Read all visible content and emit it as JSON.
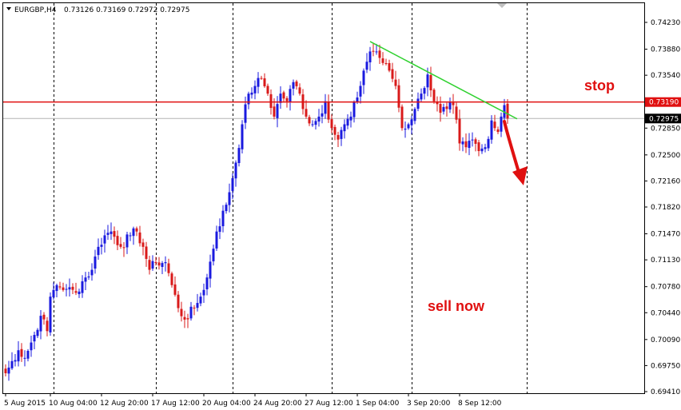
{
  "header": {
    "symbol": "EURGBP,H4",
    "ohlc": "0.73126 0.73169 0.72972 0.72975"
  },
  "colors": {
    "bull": "#1a1adf",
    "bear": "#d91a1a",
    "resistance_line": "#e01010",
    "trend_line": "#2fd12f",
    "annotation": "#e01010",
    "current_price_line": "#b4b4b4",
    "grid_separators": "#000000"
  },
  "annotations": {
    "stop_label": "stop",
    "sell_label": "sell now"
  },
  "price_tags": {
    "stop_price": "0.73190",
    "current_price": "0.72975"
  },
  "chart_data": {
    "type": "candlestick",
    "title": "EURGBP,H4",
    "xlabel": "",
    "ylabel": "",
    "ylim": [
      0.6941,
      0.7423
    ],
    "y_ticks": [
      "0.74230",
      "0.73880",
      "0.73540",
      "0.73190",
      "0.72850",
      "0.72500",
      "0.72160",
      "0.71820",
      "0.71470",
      "0.71130",
      "0.70780",
      "0.70440",
      "0.70090",
      "0.69750",
      "0.69410"
    ],
    "x_labels": [
      "5 Aug 2015",
      "10 Aug 04:00",
      "12 Aug 20:00",
      "17 Aug 12:00",
      "20 Aug 04:00",
      "24 Aug 20:00",
      "27 Aug 12:00",
      "1 Sep 04:00",
      "3 Sep 20:00",
      "8 Sep 12:00"
    ],
    "x_label_index": [
      0,
      14,
      30,
      46,
      62,
      78,
      94,
      110,
      126,
      142
    ],
    "period_separator_index": [
      15,
      47,
      71,
      102,
      127,
      163
    ],
    "stop_level": 0.7319,
    "current_price": 0.72975,
    "trendline": {
      "from_index": 114,
      "from_price": 0.7398,
      "to_index": 160,
      "to_price": 0.7297
    },
    "grid": false,
    "anchors": [
      [
        0,
        0.6965
      ],
      [
        4,
        0.6995
      ],
      [
        6,
        0.6985
      ],
      [
        9,
        0.7015
      ],
      [
        11,
        0.704
      ],
      [
        13,
        0.702
      ],
      [
        14,
        0.7065
      ],
      [
        16,
        0.708
      ],
      [
        19,
        0.7075
      ],
      [
        22,
        0.707
      ],
      [
        24,
        0.7085
      ],
      [
        27,
        0.71
      ],
      [
        29,
        0.713
      ],
      [
        31,
        0.7145
      ],
      [
        33,
        0.715
      ],
      [
        36,
        0.713
      ],
      [
        39,
        0.7145
      ],
      [
        41,
        0.715
      ],
      [
        43,
        0.713
      ],
      [
        45,
        0.71
      ],
      [
        47,
        0.711
      ],
      [
        50,
        0.711
      ],
      [
        52,
        0.708
      ],
      [
        54,
        0.705
      ],
      [
        56,
        0.7035
      ],
      [
        59,
        0.705
      ],
      [
        61,
        0.7065
      ],
      [
        63,
        0.709
      ],
      [
        66,
        0.715
      ],
      [
        69,
        0.7185
      ],
      [
        72,
        0.724
      ],
      [
        74,
        0.729
      ],
      [
        76,
        0.733
      ],
      [
        78,
        0.734
      ],
      [
        80,
        0.735
      ],
      [
        82,
        0.733
      ],
      [
        84,
        0.73
      ],
      [
        86,
        0.733
      ],
      [
        88,
        0.732
      ],
      [
        90,
        0.7345
      ],
      [
        92,
        0.733
      ],
      [
        94,
        0.73
      ],
      [
        96,
        0.729
      ],
      [
        98,
        0.73
      ],
      [
        100,
        0.732
      ],
      [
        102,
        0.7285
      ],
      [
        104,
        0.727
      ],
      [
        106,
        0.729
      ],
      [
        108,
        0.73
      ],
      [
        110,
        0.7325
      ],
      [
        112,
        0.736
      ],
      [
        114,
        0.7385
      ],
      [
        116,
        0.7385
      ],
      [
        118,
        0.737
      ],
      [
        120,
        0.736
      ],
      [
        122,
        0.734
      ],
      [
        124,
        0.7285
      ],
      [
        126,
        0.729
      ],
      [
        128,
        0.731
      ],
      [
        130,
        0.733
      ],
      [
        132,
        0.7355
      ],
      [
        134,
        0.732
      ],
      [
        136,
        0.7305
      ],
      [
        138,
        0.731
      ],
      [
        140,
        0.7315
      ],
      [
        142,
        0.7265
      ],
      [
        144,
        0.726
      ],
      [
        146,
        0.727
      ],
      [
        148,
        0.7255
      ],
      [
        150,
        0.726
      ],
      [
        152,
        0.7295
      ],
      [
        154,
        0.728
      ],
      [
        155,
        0.73
      ],
      [
        156,
        0.7315
      ],
      [
        157,
        0.72975
      ]
    ]
  }
}
